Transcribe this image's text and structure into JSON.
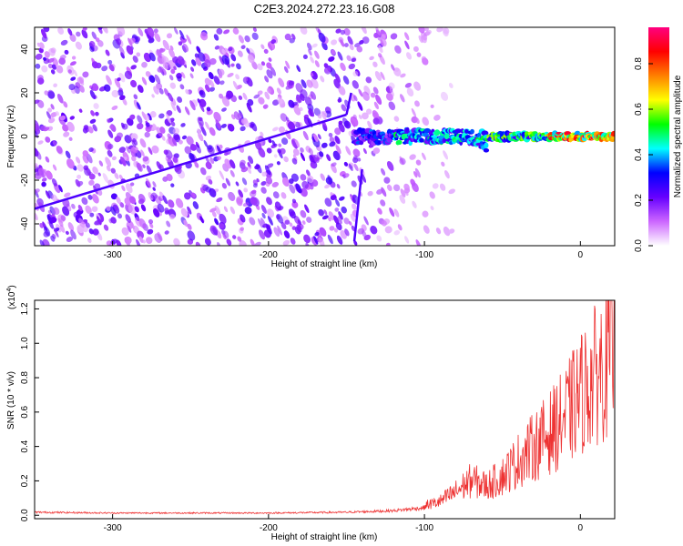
{
  "title": "C2E3.2024.272.23.16.G08",
  "chart_data": [
    {
      "type": "heatmap",
      "xlabel": "Height of straight line (km)",
      "ylabel": "Frequency (Hz)",
      "xlim": [
        -350,
        22
      ],
      "ylim": [
        -50,
        50
      ],
      "xticks": [
        -300,
        -200,
        -100,
        0
      ],
      "yticks": [
        -40,
        -20,
        0,
        20,
        40
      ],
      "colorbar": {
        "label": "Normalized spectral amplitude",
        "range": [
          0,
          0.96
        ],
        "ticks": [
          "0.0",
          "0.2",
          "0.4",
          "0.6",
          "0.8"
        ],
        "colors": [
          "#ffffff",
          "#cc66ff",
          "#6600ff",
          "#0000ff",
          "#00ffff",
          "#00ff00",
          "#ffff00",
          "#ff8000",
          "#ff0000",
          "#ff0080"
        ]
      },
      "features": {
        "noise_region_km": [
          -350,
          -95
        ],
        "signal_band_frequency_hz": 0,
        "signal_start_km": -145,
        "peak_amplitude_near_km": -5
      },
      "grid": false
    },
    {
      "type": "line",
      "xlabel": "Height of straight line (km)",
      "ylabel": "SNR (10 * v/v)",
      "scale_label": "(x10",
      "scale_exp": "4",
      "xlim": [
        -350,
        22
      ],
      "ylim": [
        -0.02,
        1.25
      ],
      "xticks": [
        -300,
        -200,
        -100,
        0
      ],
      "yticks": [
        "0.0",
        "0.2",
        "0.4",
        "0.6",
        "0.8",
        "1.0",
        "1.2"
      ],
      "series": [
        {
          "color": "#ee3333",
          "x": [
            -350,
            -300,
            -250,
            -200,
            -150,
            -120,
            -100,
            -90,
            -80,
            -70,
            -60,
            -50,
            -40,
            -30,
            -20,
            -10,
            0,
            10,
            22
          ],
          "y": [
            0.02,
            0.015,
            0.015,
            0.015,
            0.02,
            0.03,
            0.05,
            0.07,
            0.12,
            0.18,
            0.15,
            0.2,
            0.28,
            0.35,
            0.42,
            0.5,
            0.62,
            0.72,
            0.85
          ]
        }
      ],
      "grid": false
    }
  ]
}
